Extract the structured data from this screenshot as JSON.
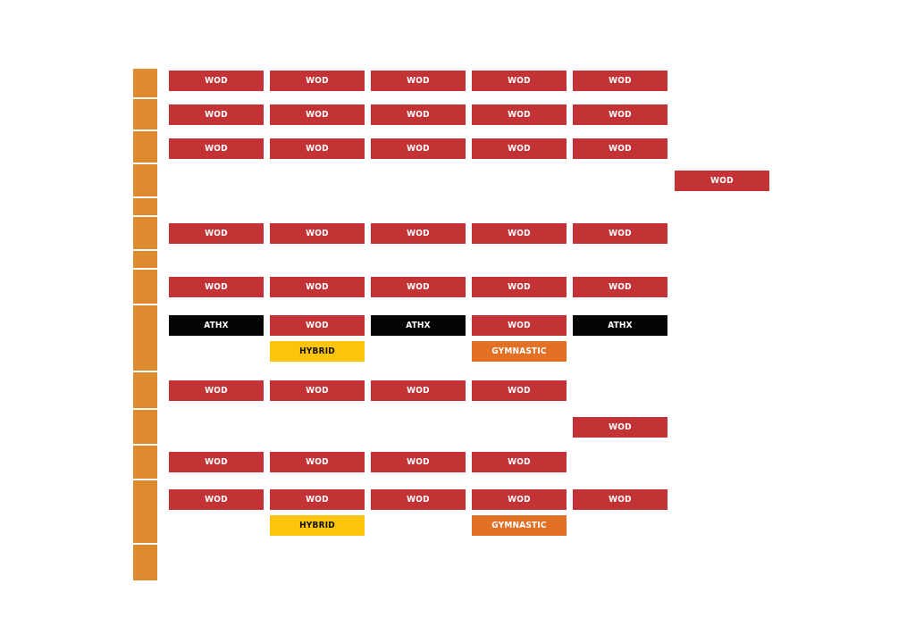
{
  "time_column": {
    "color": "#e08a30",
    "slot_count": 15
  },
  "class_colors": {
    "WOD": "#c33234",
    "ATHX": "#050505",
    "HYBRID": "#fcc40a",
    "GYMNASTIC": "#e27126"
  },
  "rows": [
    {
      "classes": [
        [
          "WOD",
          0
        ],
        [
          "WOD",
          1
        ],
        [
          "WOD",
          2
        ],
        [
          "WOD",
          3
        ],
        [
          "WOD",
          4
        ]
      ]
    },
    {
      "classes": [
        [
          "WOD",
          0
        ],
        [
          "WOD",
          1
        ],
        [
          "WOD",
          2
        ],
        [
          "WOD",
          3
        ],
        [
          "WOD",
          4
        ]
      ]
    },
    {
      "classes": [
        [
          "WOD",
          0
        ],
        [
          "WOD",
          1
        ],
        [
          "WOD",
          2
        ],
        [
          "WOD",
          3
        ],
        [
          "WOD",
          4
        ]
      ]
    },
    {
      "classes": [
        [
          "WOD",
          5
        ]
      ]
    },
    {
      "classes": [
        [
          "WOD",
          0
        ],
        [
          "WOD",
          1
        ],
        [
          "WOD",
          2
        ],
        [
          "WOD",
          3
        ],
        [
          "WOD",
          4
        ]
      ]
    },
    {
      "classes": [
        [
          "WOD",
          0
        ],
        [
          "WOD",
          1
        ],
        [
          "WOD",
          2
        ],
        [
          "WOD",
          3
        ],
        [
          "WOD",
          4
        ]
      ]
    },
    {
      "classes": [
        [
          "ATHX",
          0
        ],
        [
          "WOD",
          1
        ],
        [
          "ATHX",
          2
        ],
        [
          "WOD",
          3
        ],
        [
          "ATHX",
          4
        ]
      ]
    },
    {
      "classes": [
        [
          "HYBRID",
          1
        ],
        [
          "GYMNASTIC",
          3
        ]
      ]
    },
    {
      "classes": [
        [
          "WOD",
          0
        ],
        [
          "WOD",
          1
        ],
        [
          "WOD",
          2
        ],
        [
          "WOD",
          3
        ]
      ]
    },
    {
      "classes": [
        [
          "WOD",
          4
        ]
      ]
    },
    {
      "classes": [
        [
          "WOD",
          0
        ],
        [
          "WOD",
          1
        ],
        [
          "WOD",
          2
        ],
        [
          "WOD",
          3
        ]
      ]
    },
    {
      "classes": [
        [
          "WOD",
          0
        ],
        [
          "WOD",
          1
        ],
        [
          "WOD",
          2
        ],
        [
          "WOD",
          3
        ],
        [
          "WOD",
          4
        ]
      ]
    },
    {
      "classes": [
        [
          "HYBRID",
          1
        ],
        [
          "GYMNASTIC",
          3
        ]
      ]
    }
  ]
}
